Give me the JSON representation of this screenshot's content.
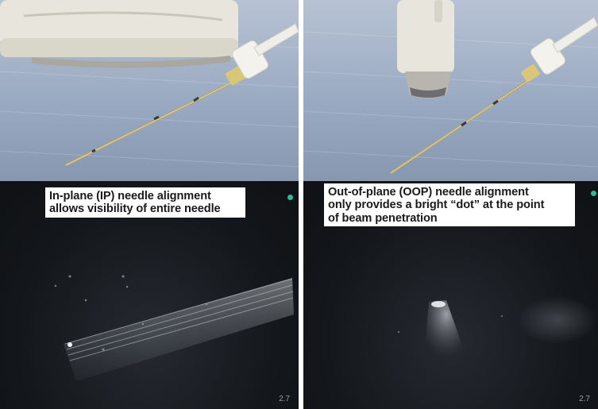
{
  "left_panel": {
    "caption_lines": [
      "In-plane (IP) needle alignment",
      "allows visibility of entire needle"
    ],
    "depth_label": "2.7"
  },
  "right_panel": {
    "caption_lines": [
      "Out-of-plane (OOP) needle alignment",
      "only provides a bright “dot” at the point",
      "of beam penetration"
    ],
    "depth_label": "2.7"
  },
  "colors": {
    "orientation_marker": "#2fb99c",
    "ultrasound_background": "#14171b",
    "drape_blue": "#98a8c0"
  }
}
